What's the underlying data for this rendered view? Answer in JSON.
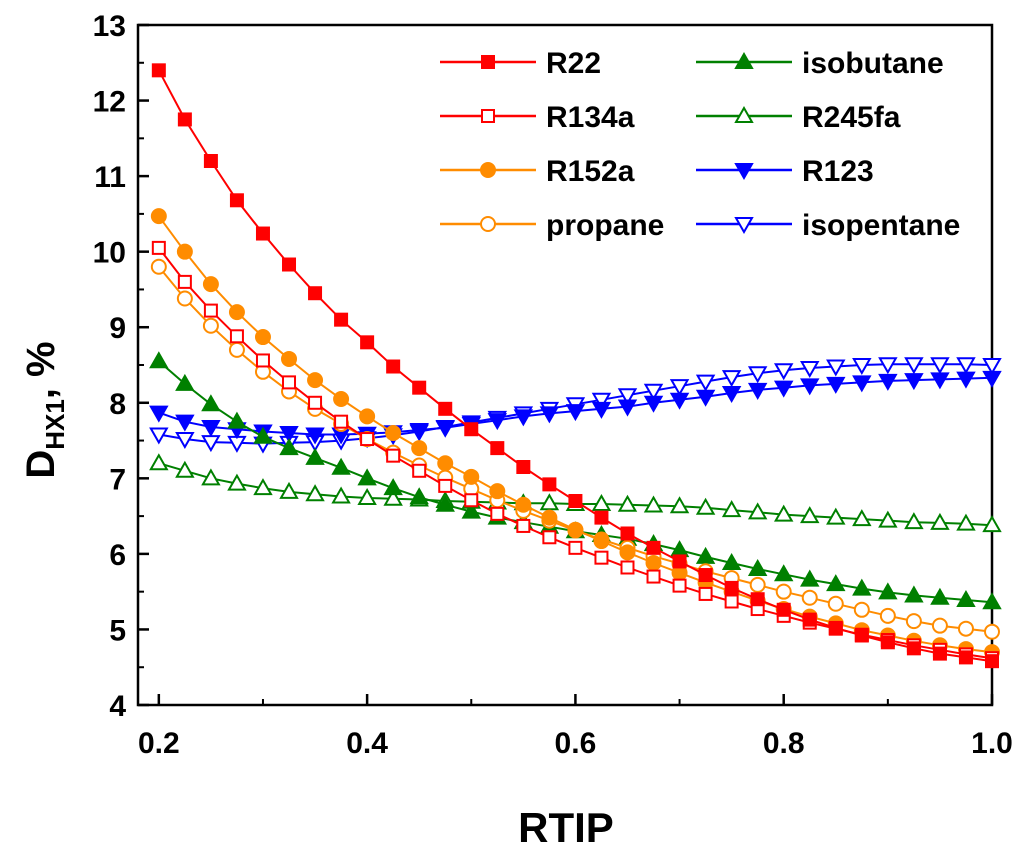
{
  "chart_data": {
    "type": "line",
    "title": "",
    "xlabel": "RTIP",
    "ylabel_main": "D",
    "ylabel_sub": "HX1",
    "ylabel_suffix": ", %",
    "xlim": [
      0.18,
      1.0
    ],
    "ylim": [
      4,
      13
    ],
    "xticks": [
      0.2,
      0.4,
      0.6,
      0.8,
      1.0
    ],
    "xtick_labels": [
      "0.2",
      "0.4",
      "0.6",
      "0.8",
      "1.0"
    ],
    "yticks": [
      4,
      5,
      6,
      7,
      8,
      9,
      10,
      11,
      12,
      13
    ],
    "ytick_labels": [
      "4",
      "5",
      "6",
      "7",
      "8",
      "9",
      "10",
      "11",
      "12",
      "13"
    ],
    "grid": false,
    "legend_position": "top-right",
    "x": [
      0.2,
      0.225,
      0.25,
      0.275,
      0.3,
      0.325,
      0.35,
      0.375,
      0.4,
      0.425,
      0.45,
      0.475,
      0.5,
      0.525,
      0.55,
      0.575,
      0.6,
      0.625,
      0.65,
      0.675,
      0.7,
      0.725,
      0.75,
      0.775,
      0.8,
      0.825,
      0.85,
      0.875,
      0.9,
      0.925,
      0.95,
      0.975,
      1.0
    ],
    "series": [
      {
        "name": "R22",
        "color": "#ff0000",
        "marker": "square",
        "filled": true,
        "values": [
          12.4,
          11.75,
          11.2,
          10.68,
          10.24,
          9.83,
          9.45,
          9.1,
          8.8,
          8.48,
          8.2,
          7.92,
          7.65,
          7.4,
          7.15,
          6.92,
          6.7,
          6.48,
          6.27,
          6.08,
          5.9,
          5.72,
          5.55,
          5.4,
          5.26,
          5.13,
          5.02,
          4.92,
          4.83,
          4.75,
          4.68,
          4.63,
          4.58
        ]
      },
      {
        "name": "R134a",
        "color": "#ff0000",
        "marker": "square",
        "filled": false,
        "values": [
          10.05,
          9.6,
          9.22,
          8.88,
          8.56,
          8.27,
          8.0,
          7.75,
          7.52,
          7.3,
          7.1,
          6.9,
          6.71,
          6.53,
          6.37,
          6.22,
          6.08,
          5.95,
          5.82,
          5.7,
          5.58,
          5.47,
          5.37,
          5.27,
          5.18,
          5.09,
          5.01,
          4.93,
          4.86,
          4.79,
          4.73,
          4.67,
          4.62
        ]
      },
      {
        "name": "R152a",
        "color": "#ff8c00",
        "marker": "circle",
        "filled": true,
        "values": [
          10.47,
          10.0,
          9.57,
          9.2,
          8.87,
          8.58,
          8.3,
          8.05,
          7.82,
          7.6,
          7.4,
          7.2,
          7.02,
          6.83,
          6.65,
          6.48,
          6.32,
          6.17,
          6.02,
          5.88,
          5.75,
          5.62,
          5.5,
          5.38,
          5.27,
          5.17,
          5.08,
          4.99,
          4.92,
          4.85,
          4.79,
          4.74,
          4.7
        ]
      },
      {
        "name": "propane",
        "color": "#ff8c00",
        "marker": "circle",
        "filled": false,
        "values": [
          9.8,
          9.38,
          9.02,
          8.7,
          8.41,
          8.15,
          7.92,
          7.72,
          7.52,
          7.34,
          7.17,
          7.01,
          6.86,
          6.71,
          6.57,
          6.44,
          6.31,
          6.19,
          6.08,
          5.97,
          5.87,
          5.77,
          5.68,
          5.59,
          5.5,
          5.42,
          5.34,
          5.26,
          5.18,
          5.11,
          5.05,
          5.01,
          4.97
        ]
      },
      {
        "name": "isobutane",
        "color": "#008000",
        "marker": "triangle-up",
        "filled": true,
        "values": [
          8.55,
          8.25,
          7.98,
          7.75,
          7.55,
          7.4,
          7.27,
          7.14,
          7.0,
          6.87,
          6.75,
          6.65,
          6.56,
          6.48,
          6.42,
          6.36,
          6.3,
          6.25,
          6.2,
          6.13,
          6.05,
          5.96,
          5.88,
          5.8,
          5.73,
          5.66,
          5.6,
          5.54,
          5.49,
          5.45,
          5.42,
          5.39,
          5.36
        ]
      },
      {
        "name": "R245fa",
        "color": "#008000",
        "marker": "triangle-up",
        "filled": false,
        "values": [
          7.2,
          7.1,
          7.0,
          6.93,
          6.87,
          6.82,
          6.79,
          6.76,
          6.74,
          6.73,
          6.72,
          6.7,
          6.69,
          6.68,
          6.67,
          6.67,
          6.66,
          6.66,
          6.65,
          6.64,
          6.63,
          6.61,
          6.58,
          6.55,
          6.52,
          6.5,
          6.48,
          6.46,
          6.44,
          6.42,
          6.41,
          6.4,
          6.38
        ]
      },
      {
        "name": "R123",
        "color": "#0000ff",
        "marker": "triangle-down",
        "filled": true,
        "values": [
          7.87,
          7.75,
          7.68,
          7.65,
          7.62,
          7.6,
          7.58,
          7.58,
          7.59,
          7.61,
          7.64,
          7.67,
          7.72,
          7.77,
          7.82,
          7.86,
          7.89,
          7.92,
          7.95,
          8.0,
          8.04,
          8.08,
          8.13,
          8.17,
          8.2,
          8.23,
          8.25,
          8.27,
          8.29,
          8.3,
          8.31,
          8.32,
          8.33
        ]
      },
      {
        "name": "isopentane",
        "color": "#0000ff",
        "marker": "triangle-down",
        "filled": false,
        "values": [
          7.58,
          7.52,
          7.48,
          7.47,
          7.46,
          7.47,
          7.48,
          7.5,
          7.53,
          7.57,
          7.62,
          7.68,
          7.74,
          7.8,
          7.86,
          7.92,
          7.98,
          8.04,
          8.1,
          8.16,
          8.22,
          8.28,
          8.34,
          8.39,
          8.43,
          8.46,
          8.48,
          8.5,
          8.51,
          8.51,
          8.51,
          8.51,
          8.5
        ]
      }
    ]
  }
}
